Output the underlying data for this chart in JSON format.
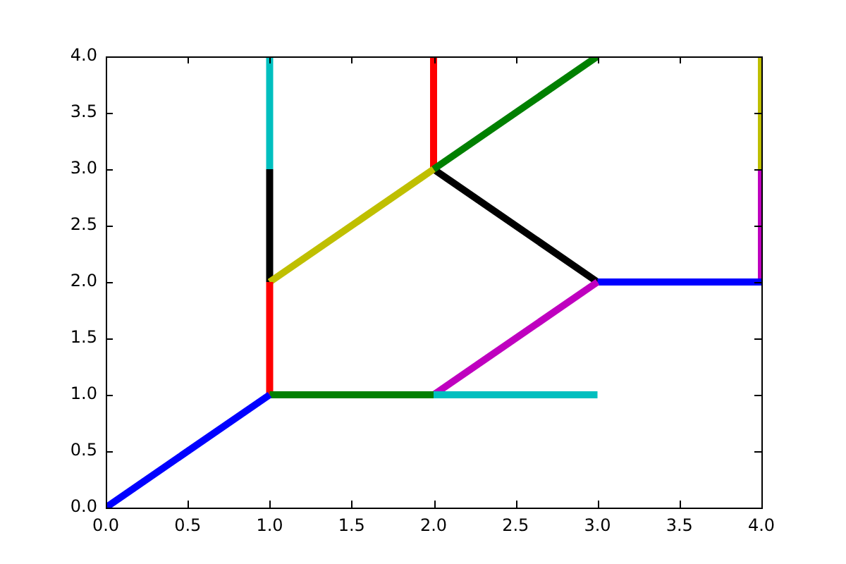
{
  "chart_data": {
    "type": "line",
    "legend": false,
    "grid": false,
    "marker": "none",
    "line_style": "solid",
    "xlim": [
      0,
      4
    ],
    "ylim": [
      0,
      4
    ],
    "xticks": [
      {
        "value": 0,
        "label": "0.0"
      },
      0.5,
      {
        "value": 1,
        "label": "1.0"
      },
      1.5,
      {
        "value": 2,
        "label": "2.0"
      },
      2.5,
      {
        "value": 3,
        "label": "3.0"
      },
      3.5,
      {
        "value": 4,
        "label": "4.0"
      }
    ],
    "yticks": [
      {
        "value": 0,
        "label": "0.0"
      },
      0.5,
      {
        "value": 1,
        "label": "1.0"
      },
      1.5,
      {
        "value": 2,
        "label": "2.0"
      },
      2.5,
      {
        "value": 3,
        "label": "3.0"
      },
      3.5,
      {
        "value": 4,
        "label": "4.0"
      }
    ],
    "series": [
      {
        "color": "#0000ff",
        "x": [
          0,
          1
        ],
        "values": [
          0,
          1
        ]
      },
      {
        "color": "#008000",
        "x": [
          1,
          2
        ],
        "values": [
          1,
          1
        ]
      },
      {
        "color": "#ff0000",
        "x": [
          1,
          1
        ],
        "values": [
          1,
          2
        ]
      },
      {
        "color": "#00bfbf",
        "x": [
          2,
          3
        ],
        "values": [
          1,
          1
        ]
      },
      {
        "color": "#bf00bf",
        "x": [
          2,
          3
        ],
        "values": [
          1,
          2
        ]
      },
      {
        "color": "#bfbf00",
        "x": [
          1,
          2
        ],
        "values": [
          2,
          3
        ]
      },
      {
        "color": "#000000",
        "x": [
          1,
          1
        ],
        "values": [
          2,
          3
        ]
      },
      {
        "color": "#0000ff",
        "x": [
          3,
          4
        ],
        "values": [
          2,
          2
        ]
      },
      {
        "color": "#008000",
        "x": [
          2,
          3
        ],
        "values": [
          3,
          4
        ]
      },
      {
        "color": "#ff0000",
        "x": [
          2,
          2
        ],
        "values": [
          3,
          4
        ]
      },
      {
        "color": "#00bfbf",
        "x": [
          1,
          1
        ],
        "values": [
          3,
          4
        ]
      },
      {
        "color": "#bf00bf",
        "x": [
          4,
          4
        ],
        "values": [
          2,
          3
        ]
      },
      {
        "color": "#bfbf00",
        "x": [
          4,
          4
        ],
        "values": [
          3,
          4
        ]
      },
      {
        "color": "#000000",
        "x": [
          2,
          3
        ],
        "values": [
          3,
          2
        ]
      }
    ]
  }
}
